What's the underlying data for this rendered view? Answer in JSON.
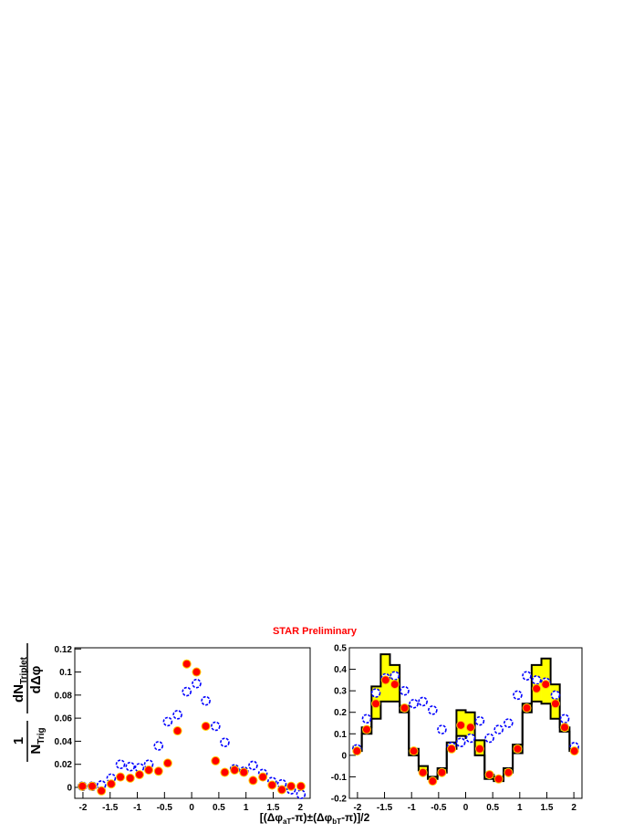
{
  "title": "STAR Preliminary",
  "ylabel": {
    "left_numerator": "1",
    "left_denominator": "N",
    "left_denominator_sub": "Trig",
    "right_numerator": "dN",
    "right_numerator_sub": "Triplet",
    "right_denominator": "dΔφ"
  },
  "xlabel": [
    "[(Δφ",
    "aT",
    "-π)±(Δφ",
    "bT",
    "-π)]/2"
  ],
  "chart_data": [
    {
      "type": "scatter",
      "x": [
        -2.01,
        -1.83,
        -1.66,
        -1.48,
        -1.31,
        -1.13,
        -0.96,
        -0.79,
        -0.61,
        -0.44,
        -0.26,
        -0.09,
        0.09,
        0.26,
        0.44,
        0.61,
        0.79,
        0.96,
        1.13,
        1.31,
        1.48,
        1.66,
        1.83,
        2.01
      ],
      "series": [
        {
          "color": "#0000ff",
          "marker": "open",
          "values": [
            0.001,
            0.001,
            0.002,
            0.008,
            0.02,
            0.018,
            0.017,
            0.02,
            0.036,
            0.057,
            0.063,
            0.083,
            0.09,
            0.075,
            0.053,
            0.039,
            0.016,
            0.014,
            0.019,
            0.012,
            0.005,
            0.003,
            -0.002,
            -0.006
          ]
        },
        {
          "color": "#ff0000",
          "marker": "filled",
          "values": [
            0.001,
            0.001,
            -0.003,
            0.003,
            0.009,
            0.008,
            0.011,
            0.015,
            0.014,
            0.021,
            0.049,
            0.107,
            0.1,
            0.053,
            0.023,
            0.013,
            0.015,
            0.013,
            0.006,
            0.009,
            0.002,
            -0.002,
            0.001,
            0.001
          ]
        }
      ],
      "xlim": [
        -2.15,
        2.18
      ],
      "xticks": [
        -2,
        -1.5,
        -1,
        -0.5,
        0,
        0.5,
        1,
        1.5,
        2
      ],
      "ylim": [
        -0.0095,
        0.121
      ],
      "yticks": [
        0,
        0.02,
        0.04,
        0.06,
        0.08,
        0.1,
        0.12
      ]
    },
    {
      "type": "scatter",
      "x": [
        -2.01,
        -1.83,
        -1.66,
        -1.48,
        -1.31,
        -1.13,
        -0.96,
        -0.79,
        -0.61,
        -0.44,
        -0.26,
        -0.09,
        0.09,
        0.26,
        0.44,
        0.61,
        0.79,
        0.96,
        1.13,
        1.31,
        1.48,
        1.66,
        1.83,
        2.01
      ],
      "bins": [
        -2.09,
        -1.92,
        -1.74,
        -1.57,
        -1.4,
        -1.22,
        -1.05,
        -0.87,
        -0.7,
        -0.52,
        -0.35,
        -0.17,
        0,
        0.17,
        0.35,
        0.52,
        0.7,
        0.87,
        1.05,
        1.22,
        1.4,
        1.57,
        1.74,
        1.92,
        2.09
      ],
      "band": {
        "color": "#ffff00",
        "low": [
          0.02,
          0.1,
          0.17,
          0.25,
          0.25,
          0.2,
          0.0,
          -0.07,
          -0.11,
          -0.08,
          0.03,
          0.09,
          0.08,
          0.0,
          -0.11,
          -0.12,
          -0.08,
          0.01,
          0.2,
          0.25,
          0.24,
          0.17,
          0.11,
          0.02
        ],
        "high": [
          0.04,
          0.13,
          0.32,
          0.47,
          0.42,
          0.23,
          0.03,
          -0.05,
          -0.1,
          -0.06,
          0.06,
          0.21,
          0.2,
          0.07,
          -0.09,
          -0.1,
          -0.06,
          0.05,
          0.24,
          0.42,
          0.45,
          0.33,
          0.13,
          0.03
        ]
      },
      "series": [
        {
          "color": "#0000ff",
          "marker": "open",
          "values": [
            0.03,
            0.17,
            0.29,
            0.36,
            0.37,
            0.3,
            0.24,
            0.25,
            0.21,
            0.12,
            0.04,
            0.06,
            0.08,
            0.16,
            0.08,
            0.12,
            0.15,
            0.28,
            0.37,
            0.35,
            0.34,
            0.28,
            0.17,
            0.04
          ]
        },
        {
          "color": "#ff0000",
          "marker": "filled",
          "values": [
            0.02,
            0.12,
            0.24,
            0.35,
            0.33,
            0.22,
            0.02,
            -0.08,
            -0.12,
            -0.08,
            0.03,
            0.14,
            0.13,
            0.03,
            -0.09,
            -0.11,
            -0.08,
            0.03,
            0.22,
            0.31,
            0.33,
            0.24,
            0.13,
            0.02
          ]
        }
      ],
      "xlim": [
        -2.15,
        2.15
      ],
      "xticks": [
        -2,
        -1.5,
        -1,
        -0.5,
        0,
        0.5,
        1,
        1.5,
        2
      ],
      "ylim": [
        -0.2,
        0.5
      ],
      "yticks": [
        -0.2,
        -0.1,
        0,
        0.1,
        0.2,
        0.3,
        0.4,
        0.5
      ]
    }
  ]
}
